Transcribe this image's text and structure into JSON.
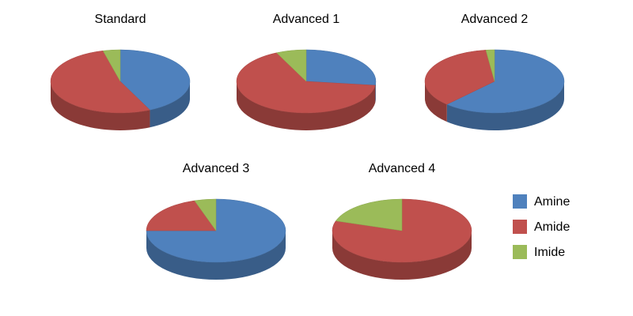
{
  "chart_data": [
    {
      "type": "pie",
      "title": "Standard",
      "categories": [
        "Amine",
        "Amide",
        "Imide"
      ],
      "values": [
        43,
        53,
        4
      ],
      "colors": [
        "#4f81bd",
        "#c0504d",
        "#9bbb59"
      ]
    },
    {
      "type": "pie",
      "title": "Advanced 1",
      "categories": [
        "Amine",
        "Amide",
        "Imide"
      ],
      "values": [
        27,
        66,
        7
      ],
      "colors": [
        "#4f81bd",
        "#c0504d",
        "#9bbb59"
      ]
    },
    {
      "type": "pie",
      "title": "Advanced 2",
      "categories": [
        "Amine",
        "Amide",
        "Imide"
      ],
      "values": [
        62,
        36,
        2
      ],
      "colors": [
        "#4f81bd",
        "#c0504d",
        "#9bbb59"
      ]
    },
    {
      "type": "pie",
      "title": "Advanced 3",
      "categories": [
        "Amine",
        "Amide",
        "Imide"
      ],
      "values": [
        75,
        20,
        5
      ],
      "colors": [
        "#4f81bd",
        "#c0504d",
        "#9bbb59"
      ]
    },
    {
      "type": "pie",
      "title": "Advanced 4",
      "categories": [
        "Amine",
        "Amide",
        "Imide"
      ],
      "values": [
        0,
        80,
        20
      ],
      "colors": [
        "#4f81bd",
        "#c0504d",
        "#9bbb59"
      ]
    }
  ]
}
